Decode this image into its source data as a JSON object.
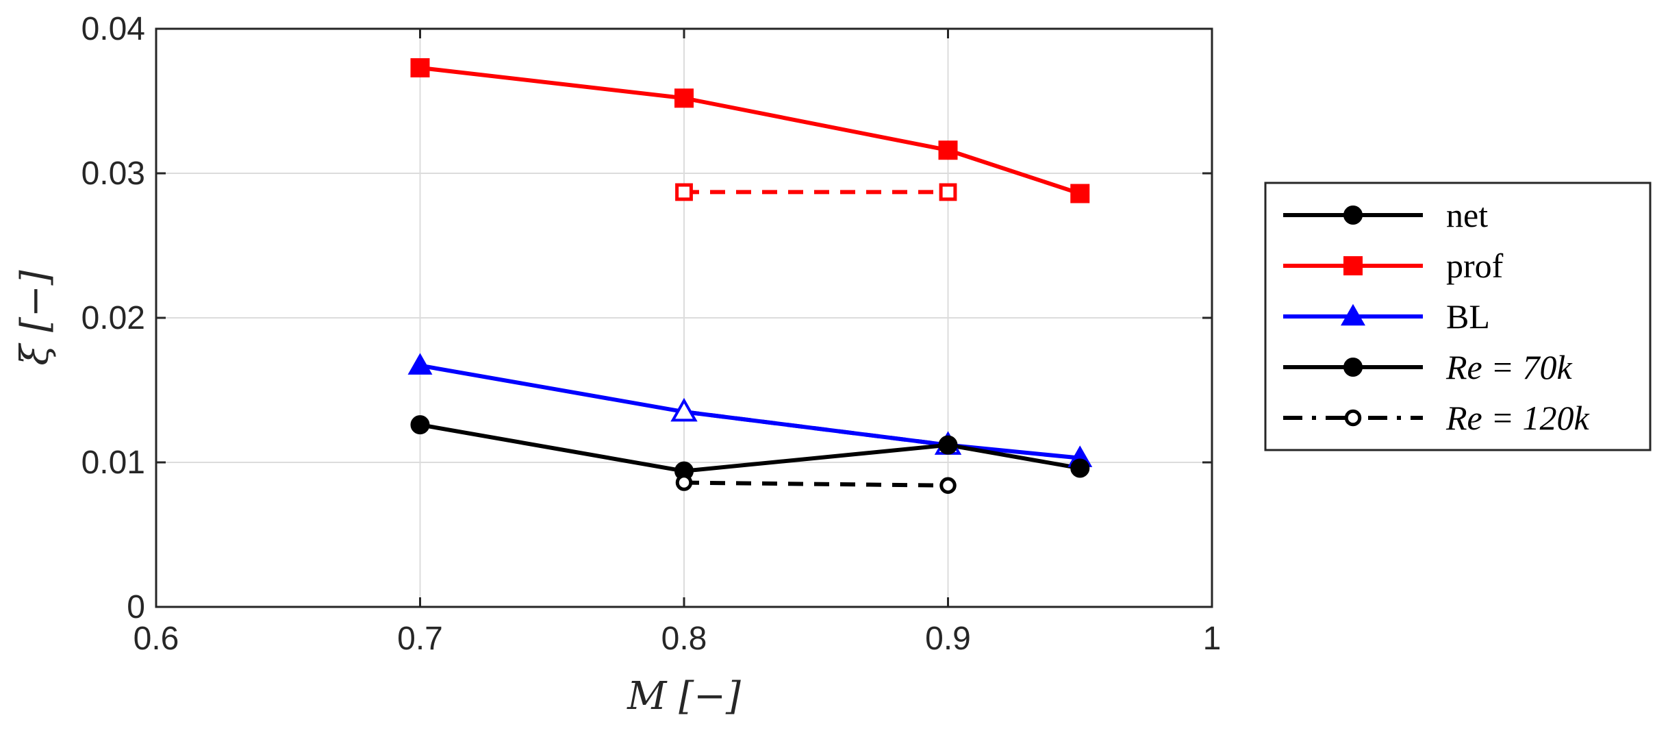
{
  "chart_data": {
    "type": "line",
    "xlabel": "M [−]",
    "ylabel": "ξ [−]",
    "xlim": [
      0.6,
      1.0
    ],
    "ylim": [
      0,
      0.04
    ],
    "x_ticks": [
      "0.6",
      "0.7",
      "0.8",
      "0.9",
      "1"
    ],
    "y_ticks": [
      "0",
      "0.01",
      "0.02",
      "0.03",
      "0.04"
    ],
    "grid": true,
    "legend_position": "right",
    "legend": [
      {
        "label": "net",
        "color": "#000000",
        "marker": "filled-circle",
        "line": "solid"
      },
      {
        "label": "prof",
        "color": "#ff0000",
        "marker": "filled-square",
        "line": "solid"
      },
      {
        "label": "BL",
        "color": "#0000ff",
        "marker": "filled-triangle",
        "line": "solid"
      },
      {
        "label": "Re = 70k",
        "color": "#000000",
        "marker": "filled-circle",
        "line": "solid"
      },
      {
        "label": "Re = 120k",
        "color": "#000000",
        "marker": "open-circle",
        "line": "dashed"
      }
    ],
    "series": [
      {
        "name": "prof",
        "Re": "70k",
        "color": "#ff0000",
        "marker": "filled-square",
        "line": "solid",
        "x": [
          0.7,
          0.8,
          0.9,
          0.95
        ],
        "y": [
          0.0373,
          0.0352,
          0.0316,
          0.0286
        ]
      },
      {
        "name": "prof",
        "Re": "120k",
        "color": "#ff0000",
        "marker": "open-square",
        "line": "dashed",
        "x": [
          0.8,
          0.9
        ],
        "y": [
          0.0287,
          0.0287
        ]
      },
      {
        "name": "BL",
        "Re": "70k",
        "color": "#0000ff",
        "marker": "filled-triangle",
        "line": "solid",
        "x": [
          0.7,
          0.8,
          0.9,
          0.95
        ],
        "y": [
          0.0167,
          0.0135,
          0.0112,
          0.0103
        ]
      },
      {
        "name": "BL",
        "Re": "120k",
        "color": "#0000ff",
        "marker": "open-triangle",
        "line": "dashed",
        "x": [
          0.8,
          0.9
        ],
        "y": [
          0.0135,
          0.0112
        ]
      },
      {
        "name": "net",
        "Re": "70k",
        "color": "#000000",
        "marker": "filled-circle",
        "line": "solid",
        "x": [
          0.7,
          0.8,
          0.9,
          0.95
        ],
        "y": [
          0.0126,
          0.0094,
          0.0112,
          0.0096
        ]
      },
      {
        "name": "net",
        "Re": "120k",
        "color": "#000000",
        "marker": "open-circle",
        "line": "dashed",
        "x": [
          0.8,
          0.9
        ],
        "y": [
          0.0086,
          0.0084
        ]
      }
    ]
  }
}
